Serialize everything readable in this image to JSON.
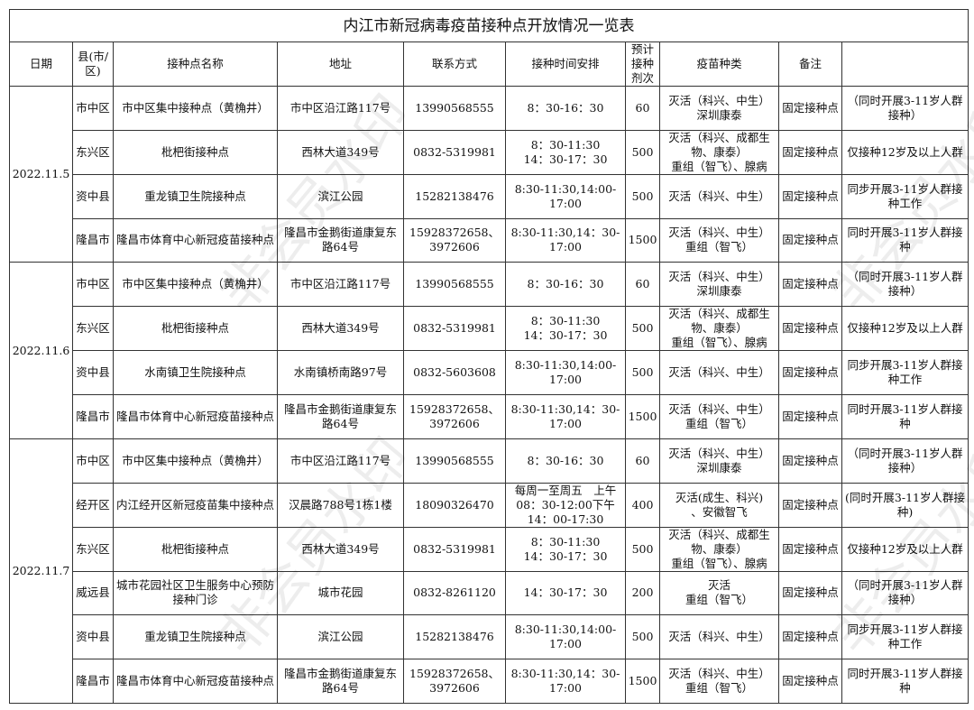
{
  "title": "内江市新冠病毒疫苗接种点开放情况一览表",
  "watermark": "非会员水印",
  "headers": [
    "日期",
    "县(市/区)",
    "接种点名称",
    "地址",
    "联系方式",
    "接种时间安排",
    "预计接种剂次",
    "疫苗种类",
    "备注",
    ""
  ],
  "groups": [
    {
      "date": "2022.11.5",
      "rows": [
        {
          "district": "市中区",
          "name": "市中区集中接种点（黄桷井）",
          "address": "市中区沿江路117号",
          "contact": "13990568555",
          "time": "8：30-16：30",
          "doses": "60",
          "vaccine": "灭活（科兴、中生）\n深圳康泰",
          "type": "固定接种点",
          "note": "（同时开展3-11岁人群接种）"
        },
        {
          "district": "东兴区",
          "name": "枇杷街接种点",
          "address": "西林大道349号",
          "contact": "0832-5319981",
          "time": "8：30-11:30\n14：30-17：30",
          "doses": "500",
          "vaccine": "灭活（科兴、成都生物、康泰）\n重组（智飞）、腺病",
          "type": "固定接种点",
          "note": "仅接种12岁及以上人群"
        },
        {
          "district": "资中县",
          "name": "重龙镇卫生院接种点",
          "address": "滨江公园",
          "contact": "15282138476",
          "time": "8:30-11:30,14:00-17:00",
          "doses": "500",
          "vaccine": "灭活（科兴、中生）",
          "type": "固定接种点",
          "note": "同步开展3-11岁人群接种工作"
        },
        {
          "district": "隆昌市",
          "name": "隆昌市体育中心新冠疫苗接种点",
          "address": "隆昌市金鹅街道康复东路64号",
          "contact": "15928372658、3972606",
          "time": "8:30-11:30,14：30-17:00",
          "doses": "1500",
          "vaccine": "灭活（科兴、中生）\n重组（智飞）",
          "type": "固定接种点",
          "note": "同时开展3-11岁人群接种"
        }
      ]
    },
    {
      "date": "2022.11.6",
      "rows": [
        {
          "district": "市中区",
          "name": "市中区集中接种点（黄桷井）",
          "address": "市中区沿江路117号",
          "contact": "13990568555",
          "time": "8：30-16：30",
          "doses": "60",
          "vaccine": "灭活（科兴、中生）\n深圳康泰",
          "type": "固定接种点",
          "note": "（同时开展3-11岁人群接种）"
        },
        {
          "district": "东兴区",
          "name": "枇杷街接种点",
          "address": "西林大道349号",
          "contact": "0832-5319981",
          "time": "8：30-11:30\n14：30-17：30",
          "doses": "500",
          "vaccine": "灭活（科兴、成都生物、康泰）\n重组（智飞）、腺病",
          "type": "固定接种点",
          "note": "仅接种12岁及以上人群"
        },
        {
          "district": "资中县",
          "name": "水南镇卫生院接种点",
          "address": "水南镇桥南路97号",
          "contact": "0832-5603608",
          "time": "8:30-11:30,14:00-17:00",
          "doses": "500",
          "vaccine": "灭活（科兴、中生）",
          "type": "固定接种点",
          "note": "同步开展3-11岁人群接种工作"
        },
        {
          "district": "隆昌市",
          "name": "隆昌市体育中心新冠疫苗接种点",
          "address": "隆昌市金鹅街道康复东路64号",
          "contact": "15928372658、3972606",
          "time": "8:30-11:30,14：30-17:00",
          "doses": "1500",
          "vaccine": "灭活（科兴、中生）\n重组（智飞）",
          "type": "固定接种点",
          "note": "同时开展3-11岁人群接种"
        }
      ]
    },
    {
      "date": "2022.11.7",
      "rows": [
        {
          "district": "市中区",
          "name": "市中区集中接种点（黄桷井）",
          "address": "市中区沿江路117号",
          "contact": "13990568555",
          "time": "8：30-16：30",
          "doses": "60",
          "vaccine": "灭活（科兴、中生）\n深圳康泰",
          "type": "固定接种点",
          "note": "（同时开展3-11岁人群接种）"
        },
        {
          "district": "经开区",
          "name": "内江经开区新冠疫苗集中接种点",
          "address": "汉晨路788号1栋1楼",
          "contact": "18090326470",
          "time": "每周一至周五　上午08：30-12:00下午14：00-17:30",
          "doses": "400",
          "vaccine": "灭活(成生、科兴)\n、安徽智飞",
          "type": "固定接种点",
          "note": "(同时开展3-11岁人群接种)"
        },
        {
          "district": "东兴区",
          "name": "枇杷街接种点",
          "address": "西林大道349号",
          "contact": "0832-5319981",
          "time": "8：30-11:30\n14：30-17：30",
          "doses": "500",
          "vaccine": "灭活（科兴、成都生物、康泰）\n重组（智飞）、腺病",
          "type": "固定接种点",
          "note": "仅接种12岁及以上人群"
        },
        {
          "district": "威远县",
          "name": "城市花园社区卫生服务中心预防接种门诊",
          "address": "城市花园",
          "contact": "0832-8261120",
          "time": "14：30-17：30",
          "doses": "200",
          "vaccine": "灭活\n重组（智飞）",
          "type": "固定接种点",
          "note": "（同时开展3-11岁人群接种）"
        },
        {
          "district": "资中县",
          "name": "重龙镇卫生院接种点",
          "address": "滨江公园",
          "contact": "15282138476",
          "time": "8:30-11:30,14:00-17:00",
          "doses": "500",
          "vaccine": "灭活（科兴、中生）",
          "type": "固定接种点",
          "note": "同步开展3-11岁人群接种工作"
        },
        {
          "district": "隆昌市",
          "name": "隆昌市体育中心新冠疫苗接种点",
          "address": "隆昌市金鹅街道康复东路64号",
          "contact": "15928372658、3972606",
          "time": "8:30-11:30,14：30-17:00",
          "doses": "1500",
          "vaccine": "灭活（科兴、中生）\n重组（智飞）",
          "type": "固定接种点",
          "note": "同时开展3-11岁人群接种"
        }
      ]
    }
  ]
}
